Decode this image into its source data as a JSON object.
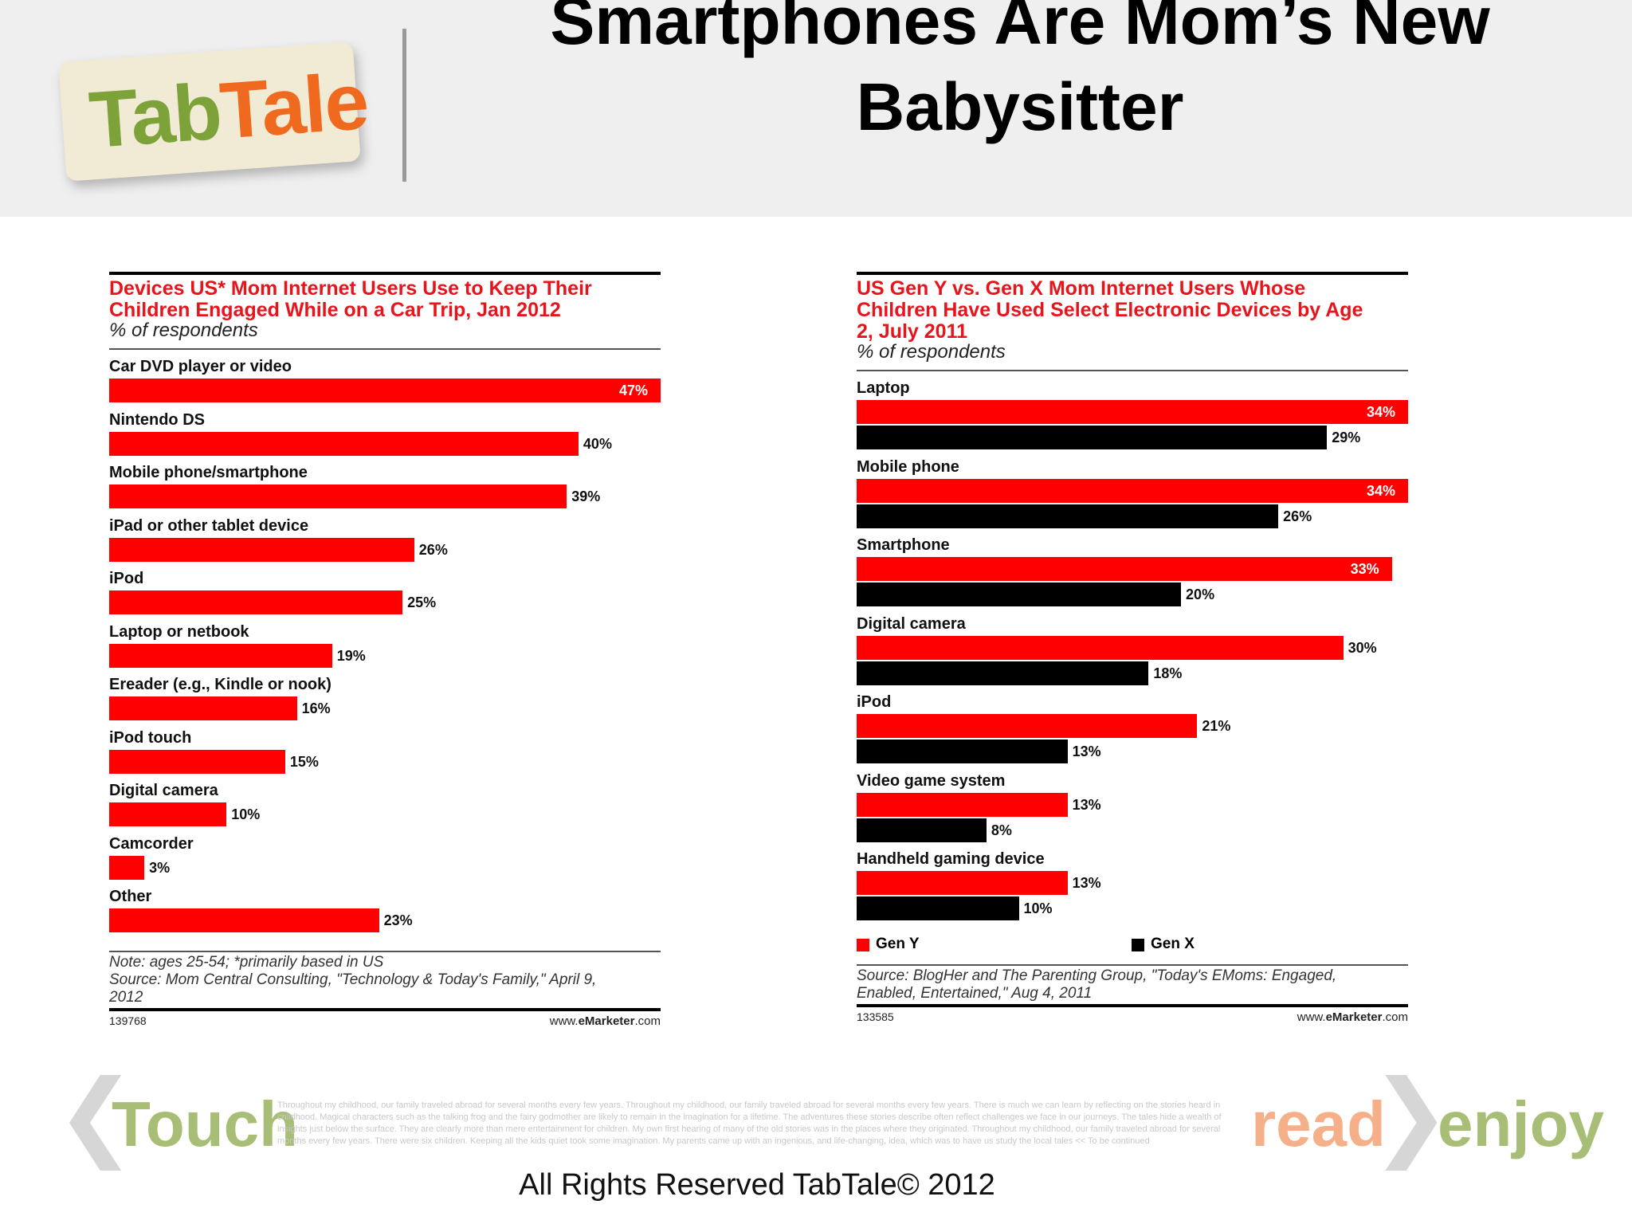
{
  "slide": {
    "title": "Smartphones Are Mom’s New Babysitter",
    "logo_part1": "Tab",
    "logo_part2": "Tale",
    "footer_touch": "Touch",
    "footer_read": "read",
    "footer_enjoy": "enjoy",
    "footer_blurb": "Throughout my childhood, our family traveled abroad for several months every few years. Throughout my childhood, our family traveled abroad for several months every few years. There is much we can learn by reflecting on the stories heard in childhood. Magical characters such as the talking frog and the fairy godmother are likely to remain in the imagination for a lifetime. The adventures these stories describe often reflect challenges we face in our journeys. The tales hide a wealth of insights just below the surface. They are clearly more than mere entertainment for children. My own first hearing of many of the old stories was in the places where they originated. Throughout my childhood, our family traveled abroad for several months every few years. There were six children. Keeping all the kids quiet took some imagination. My parents came up with an ingenious, and life-changing, idea, which was to have us study the local tales << To be continued",
    "copyright": "All Rights Reserved TabTale© 2012"
  },
  "chart_data": [
    {
      "type": "bar",
      "orientation": "horizontal",
      "title": "Devices US* Mom Internet Users Use to Keep Their Children Engaged While on a Car Trip, Jan 2012",
      "title_lines": [
        "Devices US* Mom Internet Users Use to Keep Their",
        "Children Engaged While on a Car Trip, Jan 2012"
      ],
      "subtitle": "% of respondents",
      "categories": [
        "Car DVD player or video",
        "Nintendo DS",
        "Mobile phone/smartphone",
        "iPad or other tablet device",
        "iPod",
        "Laptop or netbook",
        "Ereader (e.g., Kindle or nook)",
        "iPod touch",
        "Digital camera",
        "Camcorder",
        "Other"
      ],
      "series": [
        {
          "values": [
            47,
            40,
            39,
            26,
            25,
            19,
            16,
            15,
            10,
            3,
            23
          ],
          "color": "#ff0000"
        }
      ],
      "value_labels": [
        "47%",
        "40%",
        "39%",
        "26%",
        "25%",
        "19%",
        "16%",
        "15%",
        "10%",
        "3%",
        "23%"
      ],
      "xlim": [
        0,
        47
      ],
      "note_lines": [
        "Note: ages 25-54; *primarily based in US",
        "Source: Mom Central Consulting, \"Technology & Today's Family,\" April 9,",
        "2012"
      ],
      "code": "139768",
      "site_prefix": "www.",
      "site_brand": "eMarketer",
      "site_suffix": ".com"
    },
    {
      "type": "bar",
      "orientation": "horizontal",
      "title": "US Gen Y vs. Gen X Mom Internet Users Whose Children Have Used Select Electronic Devices by Age 2, July 2011",
      "title_lines": [
        "US Gen Y vs. Gen X Mom Internet Users Whose",
        "Children Have Used Select Electronic Devices by Age",
        "2, July 2011"
      ],
      "subtitle": "% of respondents",
      "categories": [
        "Laptop",
        "Mobile phone",
        "Smartphone",
        "Digital camera",
        "iPod",
        "Video game system",
        "Handheld gaming device"
      ],
      "series": [
        {
          "name": "Gen Y",
          "values": [
            34,
            34,
            33,
            30,
            21,
            13,
            13
          ],
          "color": "#ff0000",
          "labels": [
            "34%",
            "34%",
            "33%",
            "30%",
            "21%",
            "13%",
            "13%"
          ]
        },
        {
          "name": "Gen X",
          "values": [
            29,
            26,
            20,
            18,
            13,
            8,
            10
          ],
          "color": "#000000",
          "labels": [
            "29%",
            "26%",
            "20%",
            "18%",
            "13%",
            "8%",
            "10%"
          ]
        }
      ],
      "xlim": [
        0,
        34
      ],
      "legend_position": "bottom",
      "note_lines": [
        "Source: BlogHer and The Parenting Group, \"Today's EMoms: Engaged,",
        "Enabled, Entertained,\" Aug 4, 2011"
      ],
      "code": "133585",
      "site_prefix": "www.",
      "site_brand": "eMarketer",
      "site_suffix": ".com"
    }
  ]
}
